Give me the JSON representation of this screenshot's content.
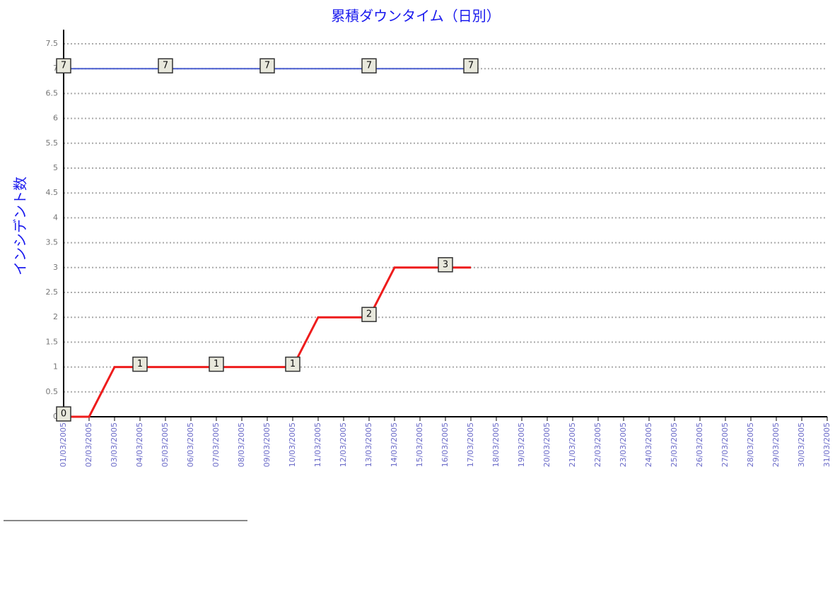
{
  "chart_data": {
    "type": "line",
    "title": "累積ダウンタイム（日別）",
    "y_label": "インシデント数",
    "categories": [
      "01/03/2005",
      "02/03/2005",
      "03/03/2005",
      "04/03/2005",
      "05/03/2005",
      "06/03/2005",
      "07/03/2005",
      "08/03/2005",
      "09/03/2005",
      "10/03/2005",
      "11/03/2005",
      "12/03/2005",
      "13/03/2005",
      "14/03/2005",
      "15/03/2005",
      "16/03/2005",
      "17/03/2005",
      "18/03/2005",
      "19/03/2005",
      "20/03/2005",
      "21/03/2005",
      "22/03/2005",
      "23/03/2005",
      "24/03/2005",
      "25/03/2005",
      "26/03/2005",
      "27/03/2005",
      "28/03/2005",
      "29/03/2005",
      "30/03/2005",
      "31/03/2005"
    ],
    "series": [
      {
        "color": "#4a5fd0",
        "values": [
          7,
          7,
          7,
          7,
          7,
          7,
          7,
          7,
          7,
          7,
          7,
          7,
          7,
          7,
          7,
          7,
          7,
          null,
          null,
          null,
          null,
          null,
          null,
          null,
          null,
          null,
          null,
          null,
          null,
          null,
          null
        ],
        "labels_at": [
          0,
          4,
          8,
          12,
          16
        ]
      },
      {
        "color": "#ee1c1c",
        "values": [
          0,
          0,
          1,
          1,
          1,
          1,
          1,
          1,
          1,
          1,
          2,
          2,
          2,
          3,
          3,
          3,
          3,
          null,
          null,
          null,
          null,
          null,
          null,
          null,
          null,
          null,
          null,
          null,
          null,
          null,
          null
        ],
        "labels_at": [
          0,
          3,
          6,
          9,
          12,
          15
        ]
      }
    ],
    "ylim": [
      0,
      7.5
    ],
    "yticks": [
      0,
      0.5,
      1,
      1.5,
      2,
      2.5,
      3,
      3.5,
      4,
      4.5,
      5,
      5.5,
      6,
      6.5,
      7,
      7.5
    ],
    "grid": true
  }
}
